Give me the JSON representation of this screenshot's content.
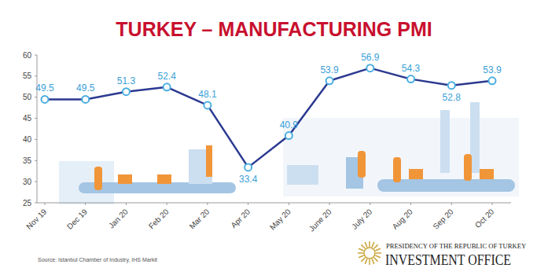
{
  "chart_data": {
    "type": "line",
    "title": "TURKEY – MANUFACTURING PMI",
    "categories": [
      "Nov 19",
      "Dec 19",
      "Jan 20",
      "Feb 20",
      "Mar 20",
      "Apr 20",
      "May 20",
      "June 20",
      "July 20",
      "Aug 20",
      "Sep 20",
      "Oct 20"
    ],
    "values": [
      49.5,
      49.5,
      51.3,
      52.4,
      48.1,
      33.4,
      40.9,
      53.9,
      56.9,
      54.3,
      52.8,
      53.9
    ],
    "color": "#2b3990",
    "marker": "circle",
    "ylim": [
      25,
      60
    ],
    "yticks": [
      25,
      30,
      35,
      40,
      45,
      50,
      55,
      60
    ],
    "grid": false,
    "data_labels": true,
    "source": "Source: Istanbul Chamber of Industry, IHS Markit"
  },
  "logo": {
    "line1": "PRESIDENCY OF THE REPUBLIC OF TURKEY",
    "line2": "INVESTMENT OFFICE"
  }
}
